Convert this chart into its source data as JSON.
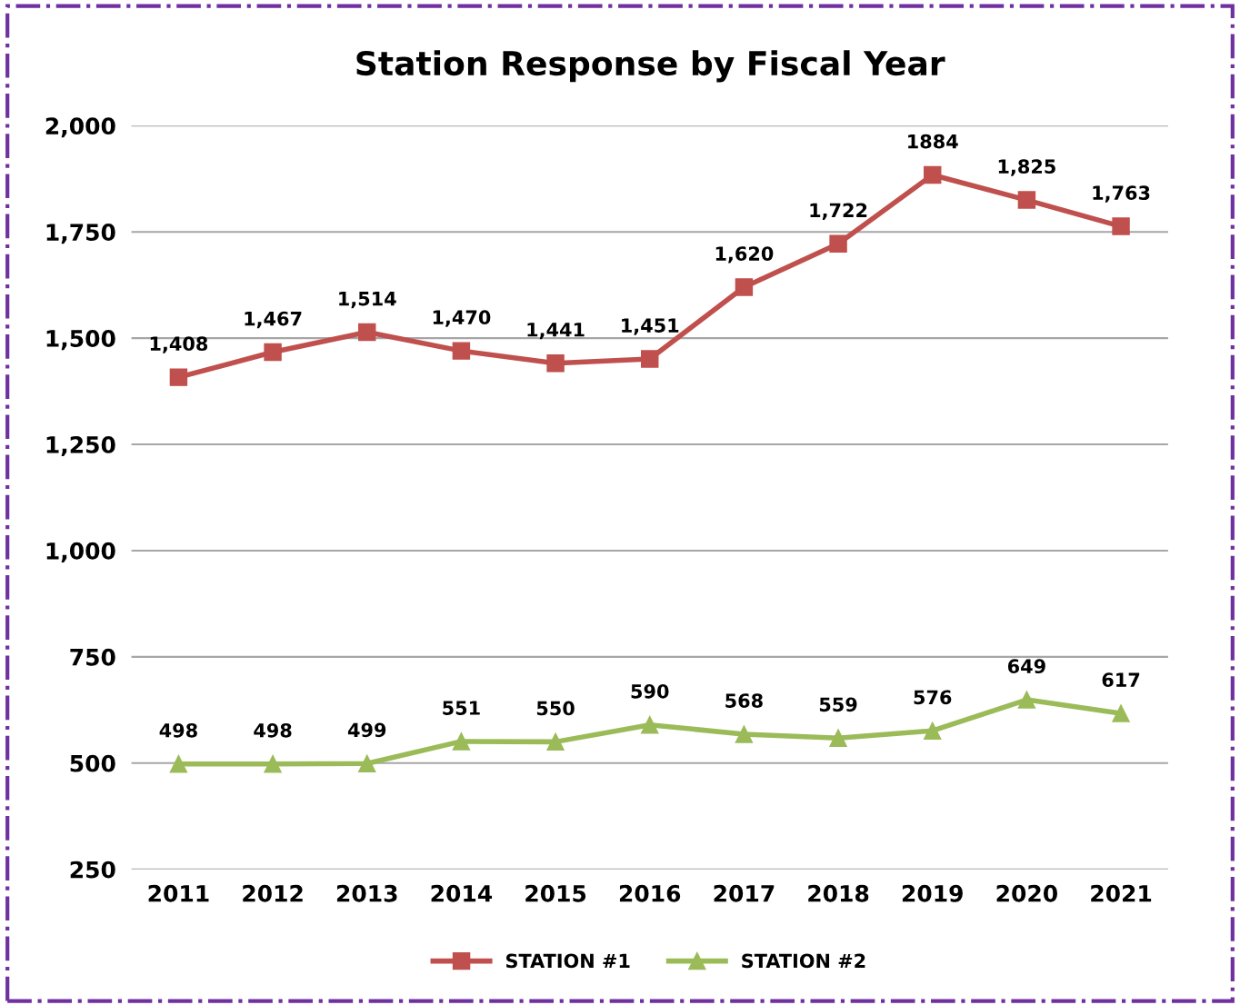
{
  "chart_data": {
    "type": "line",
    "title": "Station Response by Fiscal Year",
    "categories": [
      "2011",
      "2012",
      "2013",
      "2014",
      "2015",
      "2016",
      "2017",
      "2018",
      "2019",
      "2020",
      "2021"
    ],
    "series": [
      {
        "name": "STATION #1",
        "color": "#c0504d",
        "marker": "square",
        "values": [
          1408,
          1467,
          1514,
          1470,
          1441,
          1451,
          1620,
          1722,
          1884,
          1825,
          1763
        ],
        "value_labels": [
          "1,408",
          "1,467",
          "1,514",
          "1,470",
          "1,441",
          "1,451",
          "1,620",
          "1,722",
          "1884",
          "1,825",
          "1,763"
        ]
      },
      {
        "name": "STATION #2",
        "color": "#9bbb59",
        "marker": "triangle",
        "values": [
          498,
          498,
          499,
          551,
          550,
          590,
          568,
          559,
          576,
          649,
          617
        ],
        "value_labels": [
          "498",
          "498",
          "499",
          "551",
          "550",
          "590",
          "568",
          "559",
          "576",
          "649",
          "617"
        ]
      }
    ],
    "ylim": [
      250,
      2000
    ],
    "yticks": [
      250,
      500,
      750,
      {
        "value": 1000,
        "label": "1,000"
      },
      {
        "value": 1250,
        "label": "1,250"
      },
      {
        "value": 1500,
        "label": "1,500"
      },
      {
        "value": 1750,
        "label": "1,750"
      },
      {
        "value": 2000,
        "label": "2,000"
      }
    ],
    "grid": "y",
    "legend": "bottom",
    "line_style": "solid"
  }
}
